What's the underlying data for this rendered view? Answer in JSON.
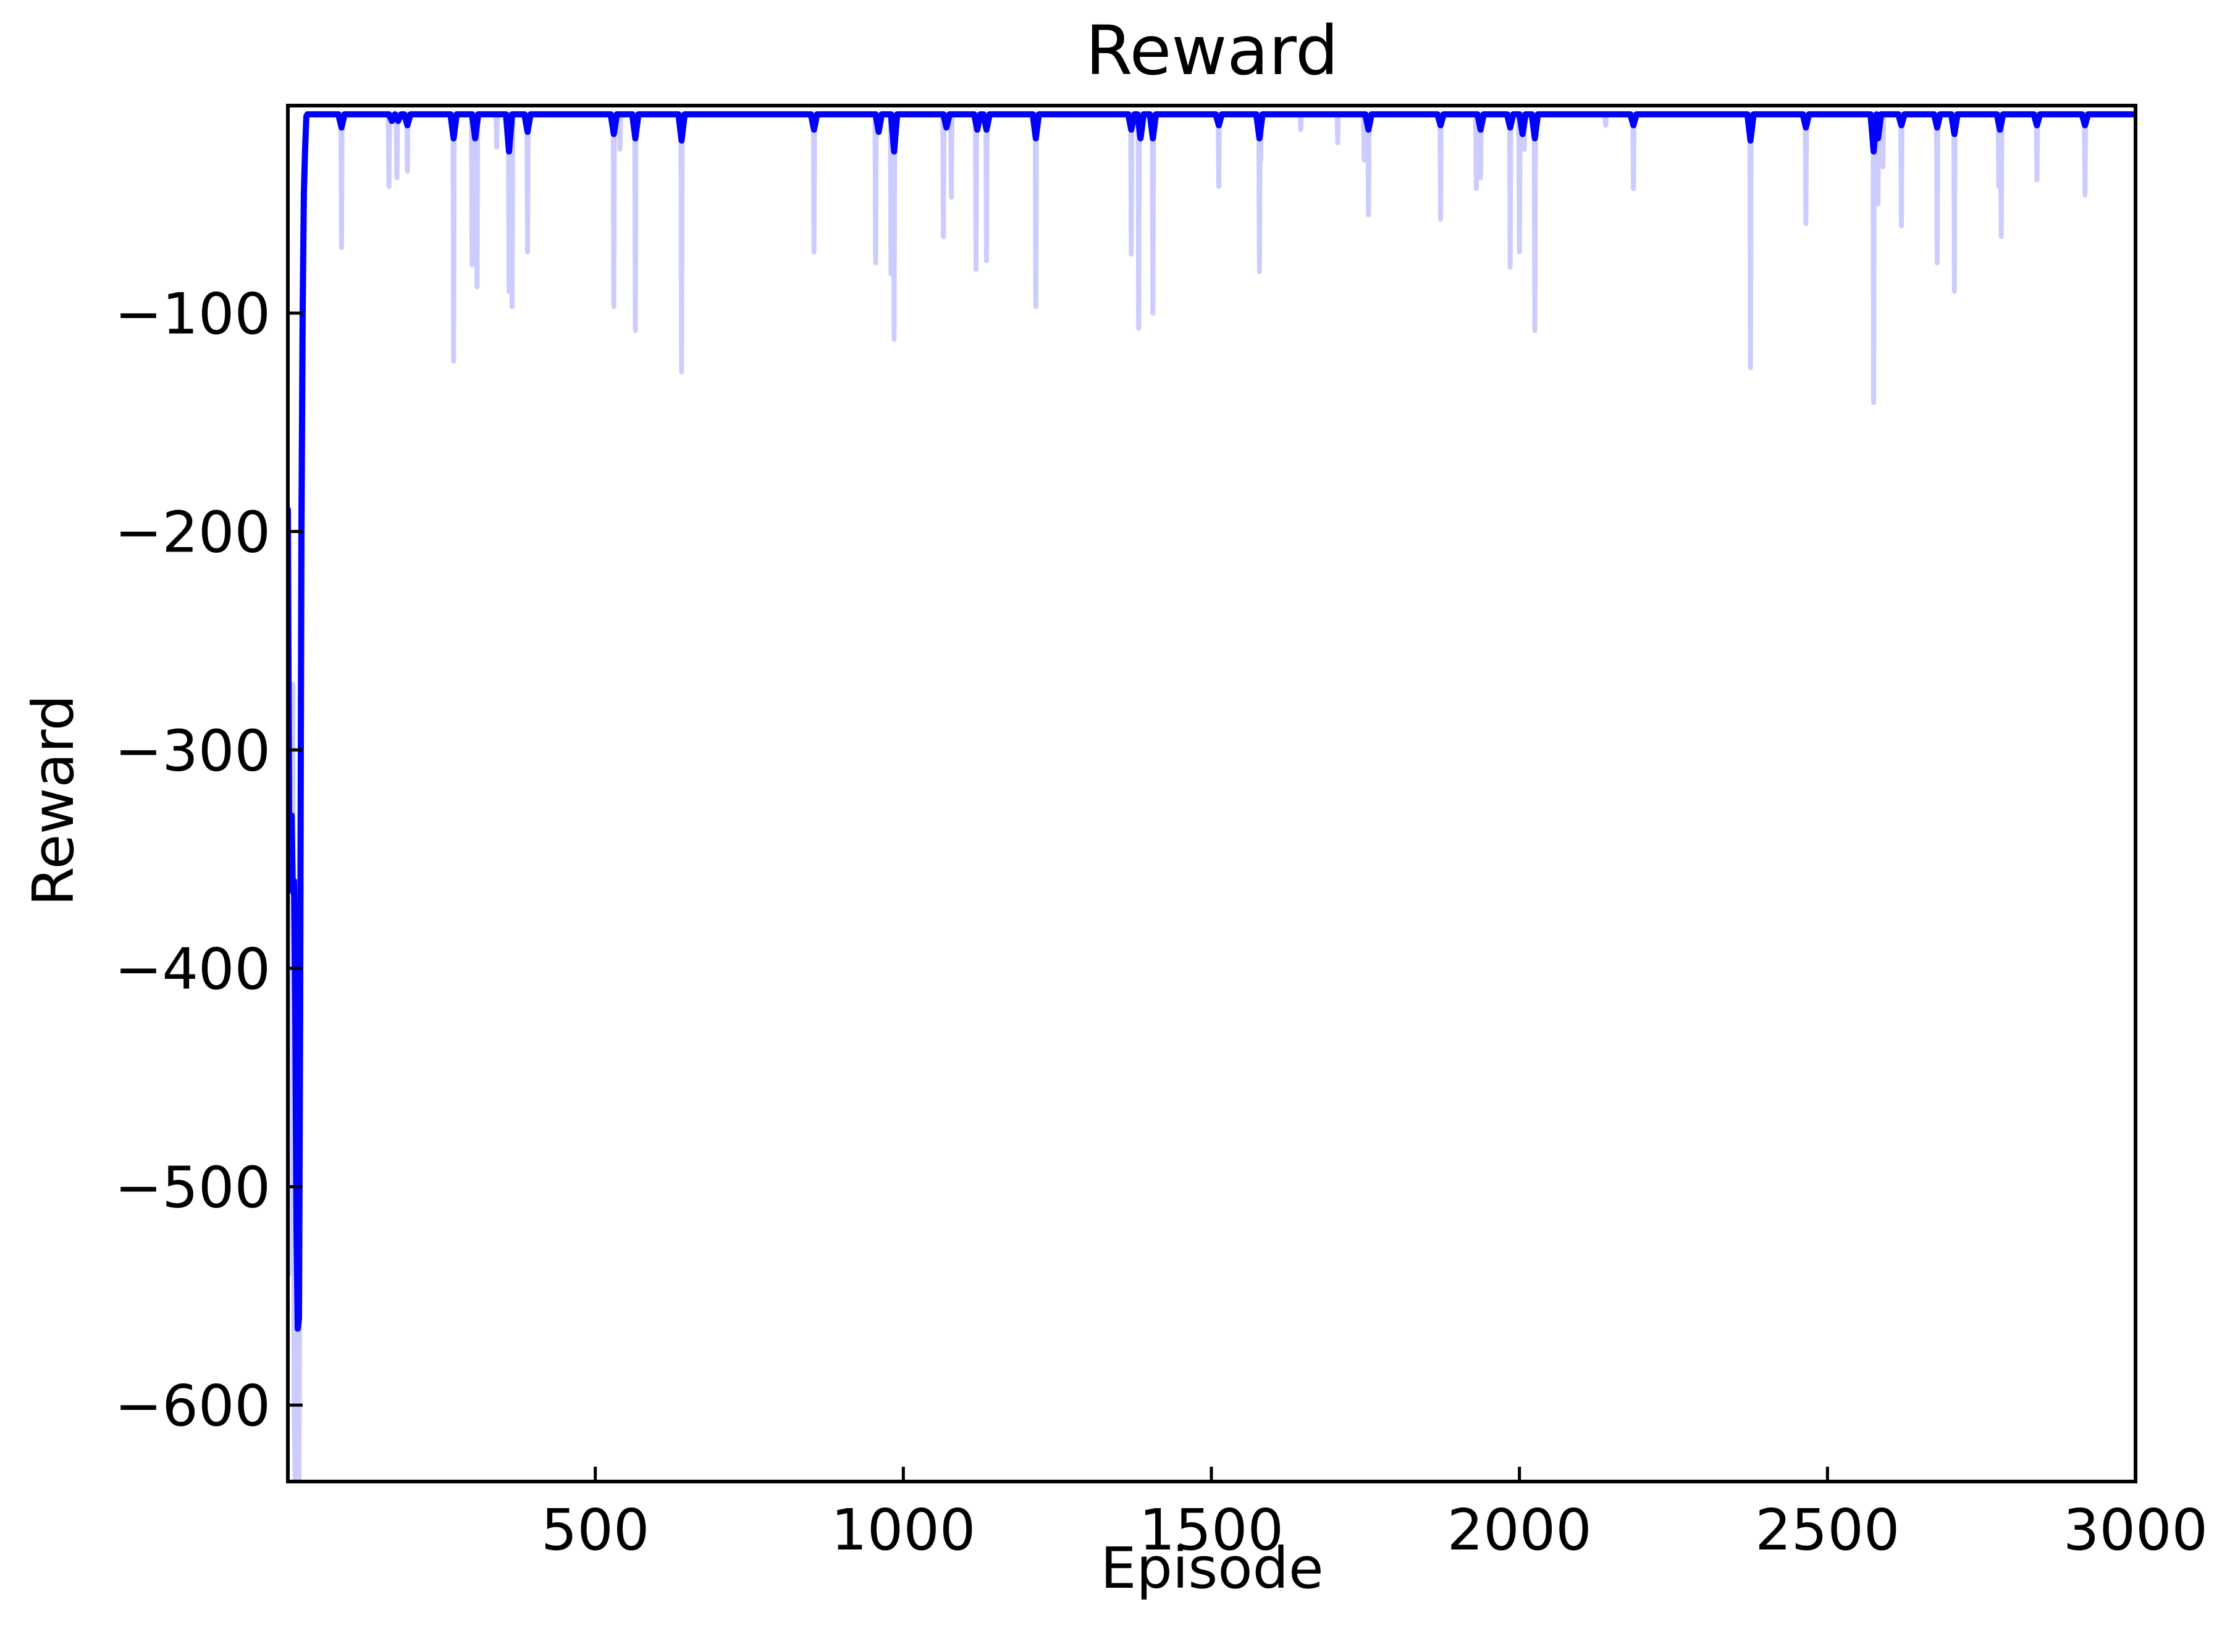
{
  "chart_data": {
    "type": "line",
    "title": "Reward",
    "xlabel": "Episode",
    "ylabel": "Reward",
    "xlim": [
      1,
      3000
    ],
    "ylim": [
      -635,
      -5
    ],
    "xticks": [
      500,
      1000,
      1500,
      2000,
      2500,
      3000
    ],
    "xtick_labels": [
      "500",
      "1000",
      "1500",
      "2000",
      "2500",
      "3000"
    ],
    "yticks": [
      -100,
      -200,
      -300,
      -400,
      -500,
      -600
    ],
    "ytick_labels": [
      "−100",
      "−200",
      "−300",
      "−400",
      "−500",
      "−600"
    ],
    "grid": false,
    "baseline": -9,
    "series": [
      {
        "role": "raw",
        "color": "#ccccff",
        "early": [
          [
            1,
            -190
          ],
          [
            3,
            -540
          ],
          [
            5,
            -330
          ],
          [
            7,
            -480
          ],
          [
            9,
            -270
          ],
          [
            11,
            -600
          ],
          [
            13,
            -635
          ],
          [
            15,
            -540
          ],
          [
            17,
            -430
          ],
          [
            19,
            -640
          ],
          [
            21,
            -500
          ],
          [
            23,
            -300
          ],
          [
            25,
            -180
          ],
          [
            27,
            -70
          ],
          [
            29,
            -20
          ],
          [
            31,
            -9
          ]
        ],
        "spikes": [
          [
            88,
            -70
          ],
          [
            165,
            -42
          ],
          [
            178,
            -38
          ],
          [
            195,
            -35
          ],
          [
            270,
            -122
          ],
          [
            300,
            -78
          ],
          [
            308,
            -88
          ],
          [
            340,
            -24
          ],
          [
            360,
            -90
          ],
          [
            365,
            -97
          ],
          [
            390,
            -72
          ],
          [
            530,
            -97
          ],
          [
            540,
            -25
          ],
          [
            565,
            -108
          ],
          [
            640,
            -127
          ],
          [
            855,
            -72
          ],
          [
            955,
            -77
          ],
          [
            980,
            -82
          ],
          [
            985,
            -112
          ],
          [
            1065,
            -65
          ],
          [
            1078,
            -47
          ],
          [
            1118,
            -80
          ],
          [
            1135,
            -76
          ],
          [
            1215,
            -97
          ],
          [
            1370,
            -73
          ],
          [
            1382,
            -107
          ],
          [
            1405,
            -100
          ],
          [
            1512,
            -42
          ],
          [
            1578,
            -81
          ],
          [
            1580,
            -30
          ],
          [
            1645,
            -16
          ],
          [
            1705,
            -22
          ],
          [
            1748,
            -30
          ],
          [
            1755,
            -55
          ],
          [
            1872,
            -57
          ],
          [
            1930,
            -43
          ],
          [
            1937,
            -38
          ],
          [
            1985,
            -79
          ],
          [
            2000,
            -72
          ],
          [
            2008,
            -25
          ],
          [
            2025,
            -108
          ],
          [
            2140,
            -14
          ],
          [
            2185,
            -43
          ],
          [
            2375,
            -125
          ],
          [
            2465,
            -59
          ],
          [
            2575,
            -141
          ],
          [
            2582,
            -50
          ],
          [
            2590,
            -33
          ],
          [
            2620,
            -60
          ],
          [
            2678,
            -77
          ],
          [
            2706,
            -90
          ],
          [
            2778,
            -42
          ],
          [
            2782,
            -65
          ],
          [
            2840,
            -39
          ],
          [
            2918,
            -46
          ]
        ]
      },
      {
        "role": "smoothed",
        "color": "#0000ff",
        "early": [
          [
            1,
            -190
          ],
          [
            3,
            -330
          ],
          [
            5,
            -360
          ],
          [
            7,
            -330
          ],
          [
            9,
            -365
          ],
          [
            11,
            -360
          ],
          [
            13,
            -420
          ],
          [
            15,
            -520
          ],
          [
            17,
            -565
          ],
          [
            19,
            -560
          ],
          [
            21,
            -420
          ],
          [
            23,
            -200
          ],
          [
            25,
            -100
          ],
          [
            27,
            -45
          ],
          [
            29,
            -25
          ],
          [
            31,
            -10
          ],
          [
            33,
            -9
          ]
        ],
        "dips": [
          [
            88,
            -15
          ],
          [
            170,
            -12
          ],
          [
            180,
            -12
          ],
          [
            195,
            -14
          ],
          [
            270,
            -20
          ],
          [
            305,
            -20
          ],
          [
            360,
            -26
          ],
          [
            390,
            -17
          ],
          [
            530,
            -18
          ],
          [
            565,
            -20
          ],
          [
            640,
            -21
          ],
          [
            855,
            -16
          ],
          [
            960,
            -17
          ],
          [
            985,
            -26
          ],
          [
            1070,
            -15
          ],
          [
            1120,
            -16
          ],
          [
            1135,
            -16
          ],
          [
            1215,
            -20
          ],
          [
            1370,
            -16
          ],
          [
            1385,
            -20
          ],
          [
            1405,
            -20
          ],
          [
            1512,
            -14
          ],
          [
            1578,
            -20
          ],
          [
            1755,
            -16
          ],
          [
            1872,
            -14
          ],
          [
            1937,
            -16
          ],
          [
            1985,
            -15
          ],
          [
            2005,
            -18
          ],
          [
            2025,
            -20
          ],
          [
            2185,
            -14
          ],
          [
            2375,
            -21
          ],
          [
            2465,
            -15
          ],
          [
            2575,
            -26
          ],
          [
            2582,
            -20
          ],
          [
            2620,
            -14
          ],
          [
            2678,
            -15
          ],
          [
            2706,
            -18
          ],
          [
            2780,
            -16
          ],
          [
            2840,
            -14
          ],
          [
            2918,
            -14
          ]
        ]
      }
    ]
  }
}
